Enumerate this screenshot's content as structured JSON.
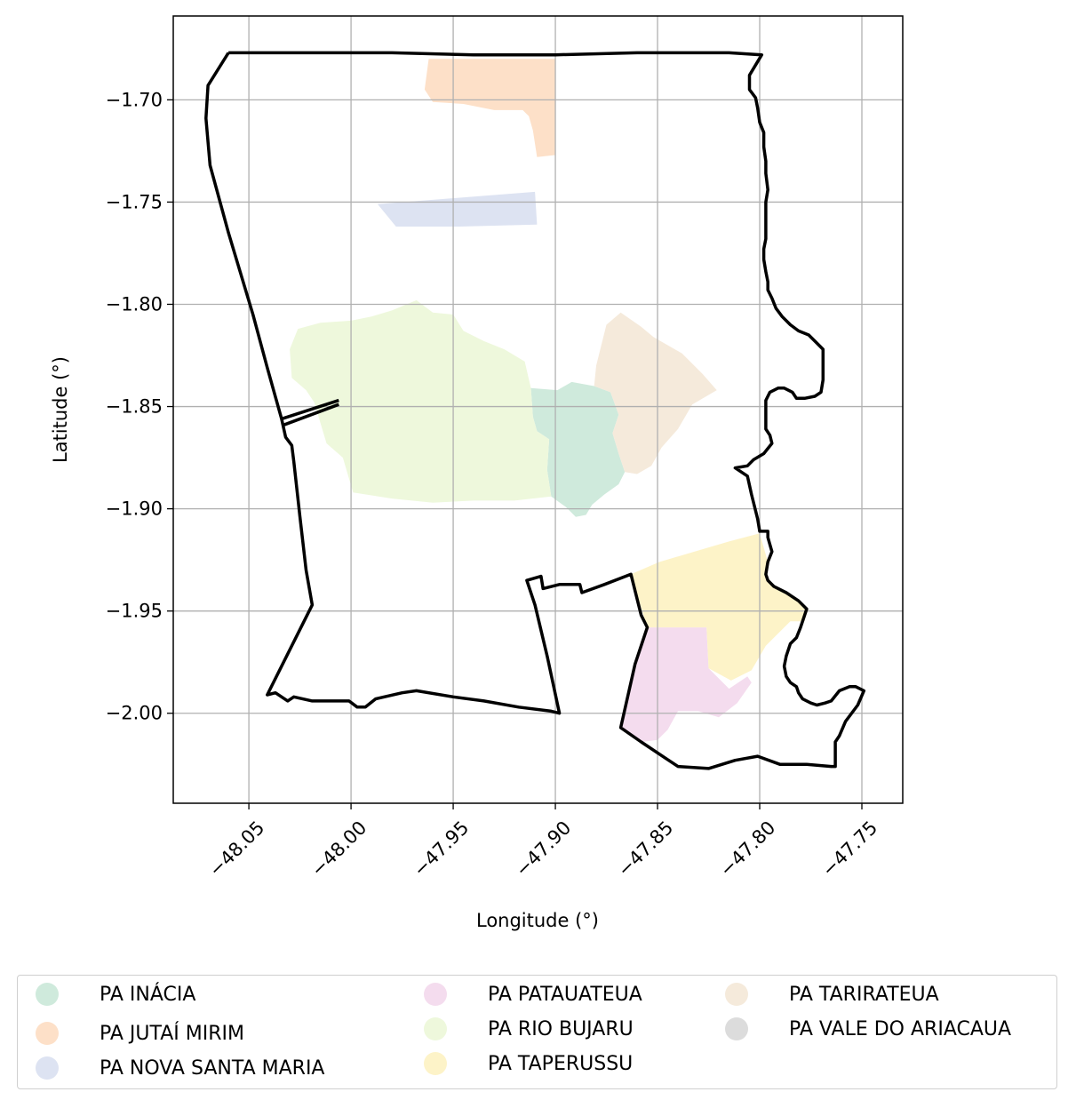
{
  "chart_data": {
    "type": "map",
    "xlabel": "Longitude (°)",
    "ylabel": "Latitude (°)",
    "xlim": [
      -48.087,
      -47.73
    ],
    "ylim": [
      -2.044,
      -1.659
    ],
    "grid": true,
    "x_ticks": [
      -48.05,
      -48.0,
      -47.95,
      -47.9,
      -47.85,
      -47.8,
      -47.75
    ],
    "x_tick_labels": [
      "−48.05",
      "−48.00",
      "−47.95",
      "−47.90",
      "−47.85",
      "−47.80",
      "−47.75"
    ],
    "y_ticks": [
      -1.7,
      -1.75,
      -1.8,
      -1.85,
      -1.9,
      -1.95,
      -2.0
    ],
    "y_tick_labels": [
      "−1.70",
      "−1.75",
      "−1.80",
      "−1.85",
      "−1.90",
      "−1.95",
      "−2.00"
    ],
    "boundary_color": "#000000",
    "boundary": [
      [
        -48.06,
        -1.677
      ],
      [
        -48.07,
        -1.693
      ],
      [
        -48.071,
        -1.709
      ],
      [
        -48.069,
        -1.732
      ],
      [
        -48.06,
        -1.765
      ],
      [
        -48.048,
        -1.805
      ],
      [
        -48.041,
        -1.831
      ],
      [
        -48.034,
        -1.856
      ],
      [
        -48.032,
        -1.865
      ],
      [
        -48.029,
        -1.869
      ],
      [
        -48.028,
        -1.877
      ],
      [
        -48.025,
        -1.904
      ],
      [
        -48.022,
        -1.93
      ],
      [
        -48.019,
        -1.947
      ],
      [
        -48.041,
        -1.991
      ],
      [
        -48.037,
        -1.99
      ],
      [
        -48.031,
        -1.994
      ],
      [
        -48.028,
        -1.992
      ],
      [
        -48.019,
        -1.994
      ],
      [
        -48.01,
        -1.994
      ],
      [
        -48.001,
        -1.994
      ],
      [
        -47.997,
        -1.997
      ],
      [
        -47.993,
        -1.997
      ],
      [
        -47.988,
        -1.993
      ],
      [
        -47.975,
        -1.99
      ],
      [
        -47.968,
        -1.989
      ],
      [
        -47.95,
        -1.992
      ],
      [
        -47.935,
        -1.994
      ],
      [
        -47.918,
        -1.997
      ],
      [
        -47.902,
        -1.999
      ],
      [
        -47.898,
        -2.0
      ],
      [
        -47.904,
        -1.972
      ],
      [
        -47.91,
        -1.947
      ],
      [
        -47.914,
        -1.935
      ],
      [
        -47.907,
        -1.933
      ],
      [
        -47.906,
        -1.939
      ],
      [
        -47.898,
        -1.937
      ],
      [
        -47.888,
        -1.937
      ],
      [
        -47.887,
        -1.941
      ],
      [
        -47.876,
        -1.937
      ],
      [
        -47.863,
        -1.932
      ],
      [
        -47.858,
        -1.952
      ],
      [
        -47.855,
        -1.958
      ],
      [
        -47.861,
        -1.976
      ],
      [
        -47.868,
        -2.007
      ],
      [
        -47.858,
        -2.014
      ],
      [
        -47.846,
        -2.022
      ],
      [
        -47.84,
        -2.026
      ],
      [
        -47.825,
        -2.027
      ],
      [
        -47.812,
        -2.023
      ],
      [
        -47.801,
        -2.021
      ],
      [
        -47.79,
        -2.025
      ],
      [
        -47.777,
        -2.025
      ],
      [
        -47.765,
        -2.026
      ],
      [
        -47.763,
        -2.026
      ],
      [
        -47.763,
        -2.014
      ],
      [
        -47.761,
        -2.011
      ],
      [
        -47.758,
        -2.004
      ],
      [
        -47.752,
        -1.996
      ],
      [
        -47.749,
        -1.989
      ],
      [
        -47.753,
        -1.987
      ],
      [
        -47.756,
        -1.987
      ],
      [
        -47.761,
        -1.989
      ],
      [
        -47.765,
        -1.994
      ],
      [
        -47.768,
        -1.995
      ],
      [
        -47.772,
        -1.996
      ],
      [
        -47.775,
        -1.995
      ],
      [
        -47.779,
        -1.993
      ],
      [
        -47.781,
        -1.99
      ],
      [
        -47.782,
        -1.987
      ],
      [
        -47.785,
        -1.985
      ],
      [
        -47.787,
        -1.982
      ],
      [
        -47.788,
        -1.977
      ],
      [
        -47.787,
        -1.972
      ],
      [
        -47.785,
        -1.966
      ],
      [
        -47.782,
        -1.963
      ],
      [
        -47.78,
        -1.958
      ],
      [
        -47.778,
        -1.952
      ],
      [
        -47.777,
        -1.949
      ],
      [
        -47.781,
        -1.945
      ],
      [
        -47.787,
        -1.941
      ],
      [
        -47.793,
        -1.938
      ],
      [
        -47.796,
        -1.935
      ],
      [
        -47.797,
        -1.932
      ],
      [
        -47.796,
        -1.926
      ],
      [
        -47.794,
        -1.921
      ],
      [
        -47.796,
        -1.914
      ],
      [
        -47.796,
        -1.911
      ],
      [
        -47.8,
        -1.911
      ],
      [
        -47.801,
        -1.905
      ],
      [
        -47.804,
        -1.893
      ],
      [
        -47.806,
        -1.884
      ],
      [
        -47.812,
        -1.88
      ],
      [
        -47.806,
        -1.879
      ],
      [
        -47.803,
        -1.876
      ],
      [
        -47.798,
        -1.873
      ],
      [
        -47.794,
        -1.868
      ],
      [
        -47.795,
        -1.864
      ],
      [
        -47.797,
        -1.861
      ],
      [
        -47.797,
        -1.854
      ],
      [
        -47.797,
        -1.847
      ],
      [
        -47.795,
        -1.843
      ],
      [
        -47.791,
        -1.841
      ],
      [
        -47.788,
        -1.841
      ],
      [
        -47.784,
        -1.843
      ],
      [
        -47.782,
        -1.846
      ],
      [
        -47.778,
        -1.846
      ],
      [
        -47.773,
        -1.845
      ],
      [
        -47.77,
        -1.843
      ],
      [
        -47.769,
        -1.837
      ],
      [
        -47.769,
        -1.83
      ],
      [
        -47.769,
        -1.822
      ],
      [
        -47.773,
        -1.818
      ],
      [
        -47.776,
        -1.815
      ],
      [
        -47.781,
        -1.813
      ],
      [
        -47.785,
        -1.81
      ],
      [
        -47.789,
        -1.806
      ],
      [
        -47.792,
        -1.802
      ],
      [
        -47.794,
        -1.797
      ],
      [
        -47.796,
        -1.793
      ],
      [
        -47.796,
        -1.789
      ],
      [
        -47.797,
        -1.784
      ],
      [
        -47.798,
        -1.778
      ],
      [
        -47.798,
        -1.773
      ],
      [
        -47.797,
        -1.768
      ],
      [
        -47.797,
        -1.762
      ],
      [
        -47.797,
        -1.757
      ],
      [
        -47.797,
        -1.75
      ],
      [
        -47.796,
        -1.744
      ],
      [
        -47.797,
        -1.736
      ],
      [
        -47.797,
        -1.73
      ],
      [
        -47.798,
        -1.723
      ],
      [
        -47.798,
        -1.716
      ],
      [
        -47.8,
        -1.711
      ],
      [
        -47.801,
        -1.704
      ],
      [
        -47.802,
        -1.699
      ],
      [
        -47.805,
        -1.695
      ],
      [
        -47.805,
        -1.688
      ],
      [
        -47.802,
        -1.683
      ],
      [
        -47.799,
        -1.678
      ],
      [
        -47.815,
        -1.677
      ],
      [
        -47.83,
        -1.677
      ],
      [
        -47.86,
        -1.677
      ],
      [
        -47.9,
        -1.678
      ],
      [
        -47.94,
        -1.678
      ],
      [
        -47.98,
        -1.677
      ],
      [
        -48.02,
        -1.677
      ],
      [
        -48.06,
        -1.677
      ]
    ],
    "extra_segments": [
      [
        [
          -48.034,
          -1.856
        ],
        [
          -48.006,
          -1.847
        ]
      ],
      [
        [
          -48.033,
          -1.859
        ],
        [
          -48.006,
          -1.849
        ]
      ]
    ],
    "regions": [
      {
        "name": "PA INÁCIA",
        "color": "#cfeadc",
        "polygon": [
          [
            -47.912,
            -1.841
          ],
          [
            -47.899,
            -1.842
          ],
          [
            -47.892,
            -1.838
          ],
          [
            -47.881,
            -1.84
          ],
          [
            -47.873,
            -1.843
          ],
          [
            -47.869,
            -1.854
          ],
          [
            -47.872,
            -1.863
          ],
          [
            -47.869,
            -1.873
          ],
          [
            -47.866,
            -1.882
          ],
          [
            -47.869,
            -1.888
          ],
          [
            -47.876,
            -1.893
          ],
          [
            -47.882,
            -1.898
          ],
          [
            -47.885,
            -1.903
          ],
          [
            -47.89,
            -1.904
          ],
          [
            -47.895,
            -1.899
          ],
          [
            -47.902,
            -1.894
          ],
          [
            -47.904,
            -1.881
          ],
          [
            -47.903,
            -1.866
          ],
          [
            -47.909,
            -1.862
          ],
          [
            -47.911,
            -1.855
          ]
        ]
      },
      {
        "name": "PA JUTAÍ MIRIM",
        "color": "#fde0c8",
        "polygon": [
          [
            -47.962,
            -1.68
          ],
          [
            -47.948,
            -1.68
          ],
          [
            -47.9,
            -1.68
          ],
          [
            -47.9,
            -1.727
          ],
          [
            -47.909,
            -1.728
          ],
          [
            -47.911,
            -1.715
          ],
          [
            -47.913,
            -1.708
          ],
          [
            -47.916,
            -1.705
          ],
          [
            -47.93,
            -1.705
          ],
          [
            -47.945,
            -1.702
          ],
          [
            -47.96,
            -1.701
          ],
          [
            -47.964,
            -1.695
          ]
        ]
      },
      {
        "name": "PA NOVA SANTA MARIA",
        "color": "#dde3f2",
        "polygon": [
          [
            -47.987,
            -1.751
          ],
          [
            -47.91,
            -1.745
          ],
          [
            -47.909,
            -1.761
          ],
          [
            -47.947,
            -1.762
          ],
          [
            -47.978,
            -1.762
          ]
        ]
      },
      {
        "name": "PA PATAUATEUA",
        "color": "#f4dcee",
        "polygon": [
          [
            -47.855,
            -1.958
          ],
          [
            -47.826,
            -1.958
          ],
          [
            -47.825,
            -1.978
          ],
          [
            -47.815,
            -1.988
          ],
          [
            -47.806,
            -1.982
          ],
          [
            -47.804,
            -1.985
          ],
          [
            -47.811,
            -1.995
          ],
          [
            -47.82,
            -2.002
          ],
          [
            -47.83,
            -1.999
          ],
          [
            -47.84,
            -1.999
          ],
          [
            -47.845,
            -2.008
          ],
          [
            -47.85,
            -2.013
          ],
          [
            -47.858,
            -2.014
          ],
          [
            -47.868,
            -2.007
          ],
          [
            -47.861,
            -1.976
          ]
        ]
      },
      {
        "name": "PA RIO BUJARU",
        "color": "#eef8dc",
        "polygon": [
          [
            -48.03,
            -1.822
          ],
          [
            -48.026,
            -1.812
          ],
          [
            -48.015,
            -1.809
          ],
          [
            -48.0,
            -1.808
          ],
          [
            -47.99,
            -1.806
          ],
          [
            -47.98,
            -1.803
          ],
          [
            -47.968,
            -1.798
          ],
          [
            -47.96,
            -1.804
          ],
          [
            -47.95,
            -1.805
          ],
          [
            -47.945,
            -1.813
          ],
          [
            -47.935,
            -1.818
          ],
          [
            -47.925,
            -1.822
          ],
          [
            -47.915,
            -1.828
          ],
          [
            -47.912,
            -1.841
          ],
          [
            -47.911,
            -1.855
          ],
          [
            -47.909,
            -1.862
          ],
          [
            -47.903,
            -1.866
          ],
          [
            -47.904,
            -1.881
          ],
          [
            -47.902,
            -1.894
          ],
          [
            -47.92,
            -1.896
          ],
          [
            -47.94,
            -1.896
          ],
          [
            -47.96,
            -1.897
          ],
          [
            -47.98,
            -1.895
          ],
          [
            -47.999,
            -1.892
          ],
          [
            -48.004,
            -1.875
          ],
          [
            -48.012,
            -1.868
          ],
          [
            -48.018,
            -1.848
          ],
          [
            -48.022,
            -1.842
          ],
          [
            -48.029,
            -1.836
          ]
        ]
      },
      {
        "name": "PA TAPERUSSU",
        "color": "#fdf3c8",
        "polygon": [
          [
            -47.863,
            -1.932
          ],
          [
            -47.849,
            -1.926
          ],
          [
            -47.832,
            -1.921
          ],
          [
            -47.815,
            -1.916
          ],
          [
            -47.8,
            -1.912
          ],
          [
            -47.796,
            -1.926
          ],
          [
            -47.797,
            -1.932
          ],
          [
            -47.793,
            -1.938
          ],
          [
            -47.787,
            -1.941
          ],
          [
            -47.781,
            -1.945
          ],
          [
            -47.777,
            -1.949
          ],
          [
            -47.778,
            -1.955
          ],
          [
            -47.785,
            -1.955
          ],
          [
            -47.797,
            -1.967
          ],
          [
            -47.804,
            -1.979
          ],
          [
            -47.814,
            -1.984
          ],
          [
            -47.825,
            -1.978
          ],
          [
            -47.826,
            -1.958
          ],
          [
            -47.855,
            -1.958
          ]
        ]
      },
      {
        "name": "PA TARIRATEUA",
        "color": "#f5eadb",
        "polygon": [
          [
            -47.873,
            -1.843
          ],
          [
            -47.881,
            -1.84
          ],
          [
            -47.88,
            -1.83
          ],
          [
            -47.875,
            -1.81
          ],
          [
            -47.868,
            -1.804
          ],
          [
            -47.858,
            -1.811
          ],
          [
            -47.852,
            -1.816
          ],
          [
            -47.838,
            -1.824
          ],
          [
            -47.828,
            -1.834
          ],
          [
            -47.821,
            -1.842
          ],
          [
            -47.833,
            -1.849
          ],
          [
            -47.84,
            -1.861
          ],
          [
            -47.848,
            -1.87
          ],
          [
            -47.853,
            -1.879
          ],
          [
            -47.86,
            -1.883
          ],
          [
            -47.866,
            -1.882
          ],
          [
            -47.869,
            -1.873
          ],
          [
            -47.872,
            -1.863
          ],
          [
            -47.869,
            -1.854
          ]
        ]
      },
      {
        "name": "PA VALE DO ARIACAUA",
        "color": "#dcdcdc",
        "polygon": []
      }
    ]
  }
}
